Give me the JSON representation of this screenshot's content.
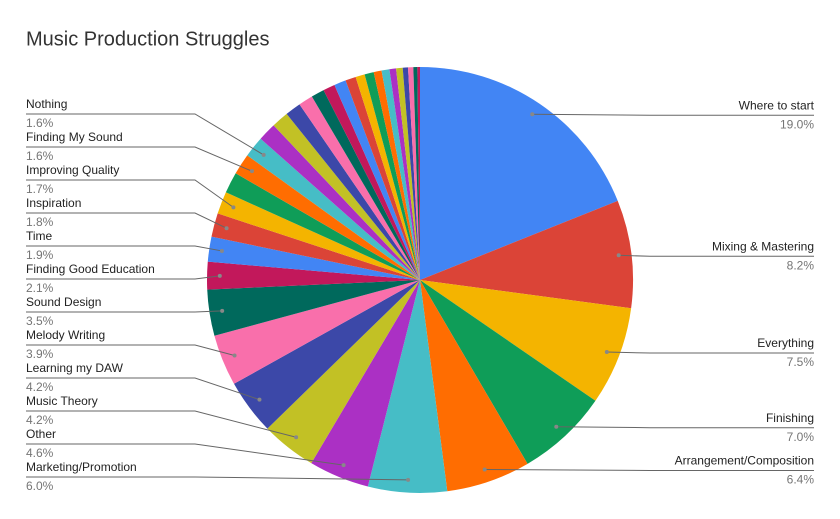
{
  "chart_data": {
    "type": "pie",
    "title": "Music Production Struggles",
    "categories": [
      "Where to start",
      "Mixing & Mastering",
      "Everything",
      "Finishing",
      "Arrangement/Composition",
      "Marketing/Promotion",
      "Other",
      "Music Theory",
      "Learning my DAW",
      "Melody Writing",
      "Sound Design",
      "Finding Good Education",
      "Time",
      "Inspiration",
      "Improving Quality",
      null,
      "Finding My Sound",
      "Nothing",
      null,
      null,
      null,
      null,
      null,
      null,
      null,
      null,
      null,
      null,
      null,
      null,
      null,
      null,
      null,
      null,
      null,
      null
    ],
    "values": [
      19.0,
      8.2,
      7.5,
      7.0,
      6.4,
      6.0,
      4.6,
      4.2,
      4.2,
      3.9,
      3.5,
      2.1,
      1.9,
      1.8,
      1.7,
      1.6,
      1.6,
      1.6,
      1.4,
      1.3,
      1.2,
      1.1,
      1.0,
      0.9,
      0.9,
      0.8,
      0.7,
      0.7,
      0.6,
      0.6,
      0.5,
      0.5,
      0.4,
      0.4,
      0.3,
      0.2
    ],
    "value_labels": [
      "19.0%",
      "8.2%",
      "7.5%",
      "7.0%",
      "6.4%",
      "6.0%",
      "4.6%",
      "4.2%",
      "4.2%",
      "3.9%",
      "3.5%",
      "2.1%",
      "1.9%",
      "1.8%",
      "1.7%",
      null,
      "1.6%",
      "1.6%",
      null,
      null,
      null,
      null,
      null,
      null,
      null,
      null,
      null,
      null,
      null,
      null,
      null,
      null,
      null,
      null,
      null,
      null
    ],
    "palette": [
      "#4285f4",
      "#db4437",
      "#f4b400",
      "#0f9d58",
      "#ff6d01",
      "#46bdc6",
      "#ab30c4",
      "#c2c125",
      "#3c48a8",
      "#f96fab",
      "#00695c",
      "#c2185b"
    ]
  }
}
